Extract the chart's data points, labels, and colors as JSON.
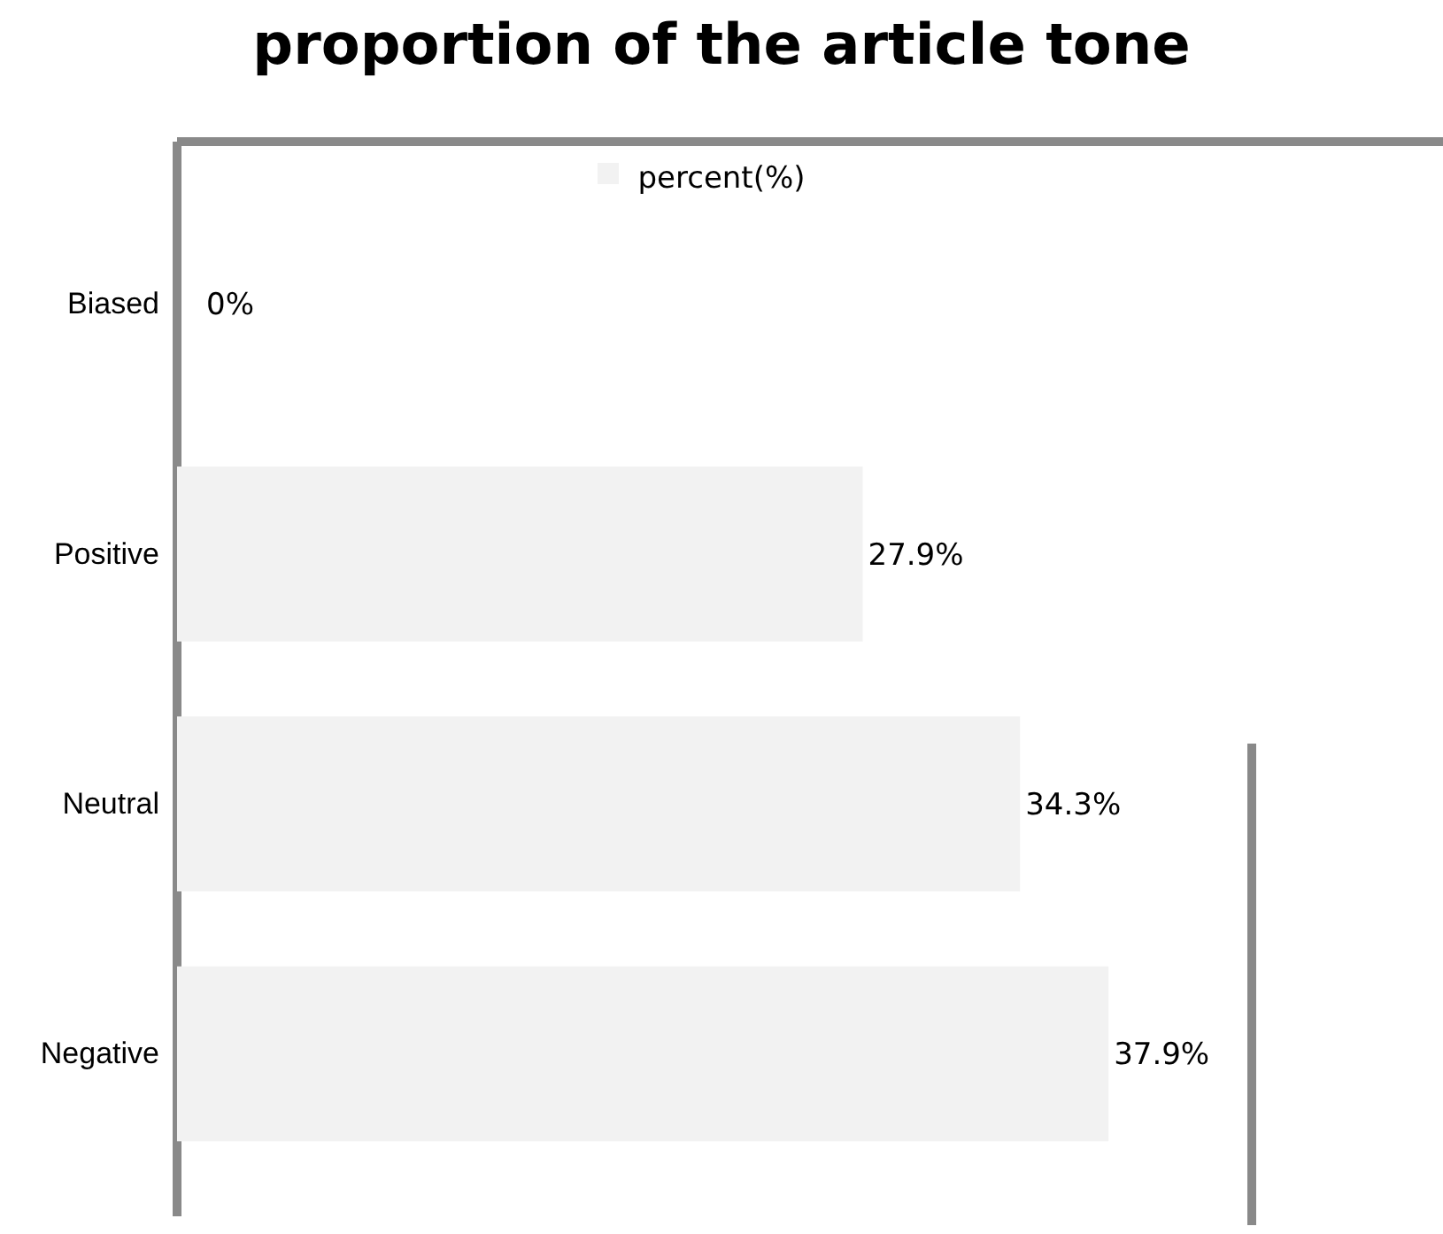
{
  "chart_data": {
    "type": "bar",
    "orientation": "horizontal",
    "title": "proportion of the article tone",
    "categories": [
      "Biased",
      "Positive",
      "Neutral",
      "Negative"
    ],
    "series": [
      {
        "name": "percent(%)",
        "color": "#f2f2f2",
        "values": [
          0,
          27.9,
          34.3,
          37.9
        ],
        "value_labels": [
          "0%",
          "27.9%",
          "34.3%",
          "37.9%"
        ]
      }
    ],
    "legend": "top",
    "tick_labels": "y"
  }
}
